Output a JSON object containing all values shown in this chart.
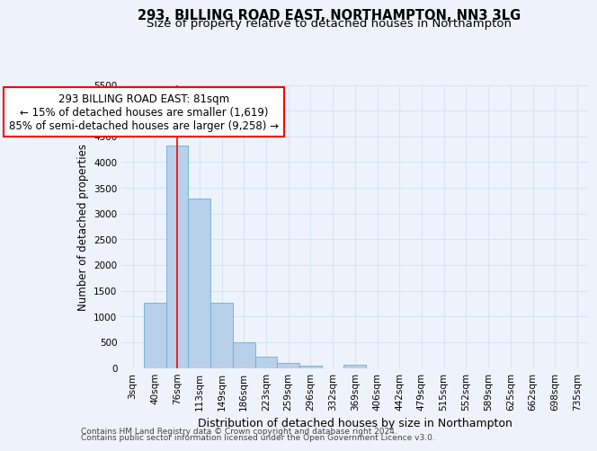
{
  "title_line1": "293, BILLING ROAD EAST, NORTHAMPTON, NN3 3LG",
  "title_line2": "Size of property relative to detached houses in Northampton",
  "xlabel": "Distribution of detached houses by size in Northampton",
  "ylabel": "Number of detached properties",
  "categories": [
    "3sqm",
    "40sqm",
    "76sqm",
    "113sqm",
    "149sqm",
    "186sqm",
    "223sqm",
    "259sqm",
    "296sqm",
    "332sqm",
    "369sqm",
    "406sqm",
    "442sqm",
    "479sqm",
    "515sqm",
    "552sqm",
    "589sqm",
    "625sqm",
    "662sqm",
    "698sqm",
    "735sqm"
  ],
  "values": [
    0,
    1260,
    4330,
    3300,
    1270,
    490,
    215,
    90,
    45,
    0,
    65,
    0,
    0,
    0,
    0,
    0,
    0,
    0,
    0,
    0,
    0
  ],
  "bar_color": "#b8d0ea",
  "bar_edge_color": "#6baed6",
  "ylim": [
    0,
    5500
  ],
  "yticks": [
    0,
    500,
    1000,
    1500,
    2000,
    2500,
    3000,
    3500,
    4000,
    4500,
    5000,
    5500
  ],
  "property_line_x": 2.0,
  "annotation_text_line1": "293 BILLING ROAD EAST: 81sqm",
  "annotation_text_line2": "← 15% of detached houses are smaller (1,619)",
  "annotation_text_line3": "85% of semi-detached houses are larger (9,258) →",
  "footer_line1": "Contains HM Land Registry data © Crown copyright and database right 2024.",
  "footer_line2": "Contains public sector information licensed under the Open Government Licence v3.0.",
  "bg_color": "#eef3fb",
  "grid_color": "#d8e4f0",
  "title_fontsize": 10.5,
  "subtitle_fontsize": 9.5,
  "annot_fontsize": 8.5,
  "axis_fontsize": 7.5,
  "ylabel_fontsize": 8.5,
  "xlabel_fontsize": 9.0,
  "footer_fontsize": 6.5
}
